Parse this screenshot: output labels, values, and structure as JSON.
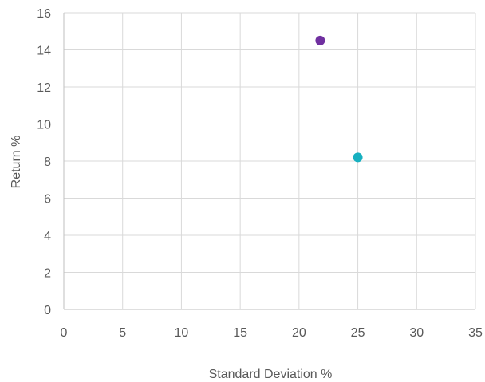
{
  "chart_data": {
    "type": "scatter",
    "title": "",
    "xlabel": "Standard Deviation %",
    "ylabel": "Return %",
    "xlim": [
      0,
      35
    ],
    "ylim": [
      0,
      16
    ],
    "xticks": [
      0,
      5,
      10,
      15,
      20,
      25,
      30,
      35
    ],
    "yticks": [
      0,
      2,
      4,
      6,
      8,
      10,
      12,
      14,
      16
    ],
    "grid": true,
    "legend": "none",
    "series": [
      {
        "color": "#7030a0",
        "points": [
          {
            "x": 21.8,
            "y": 14.5
          }
        ]
      },
      {
        "color": "#17b0c0",
        "points": [
          {
            "x": 25.0,
            "y": 8.2
          }
        ]
      }
    ]
  }
}
